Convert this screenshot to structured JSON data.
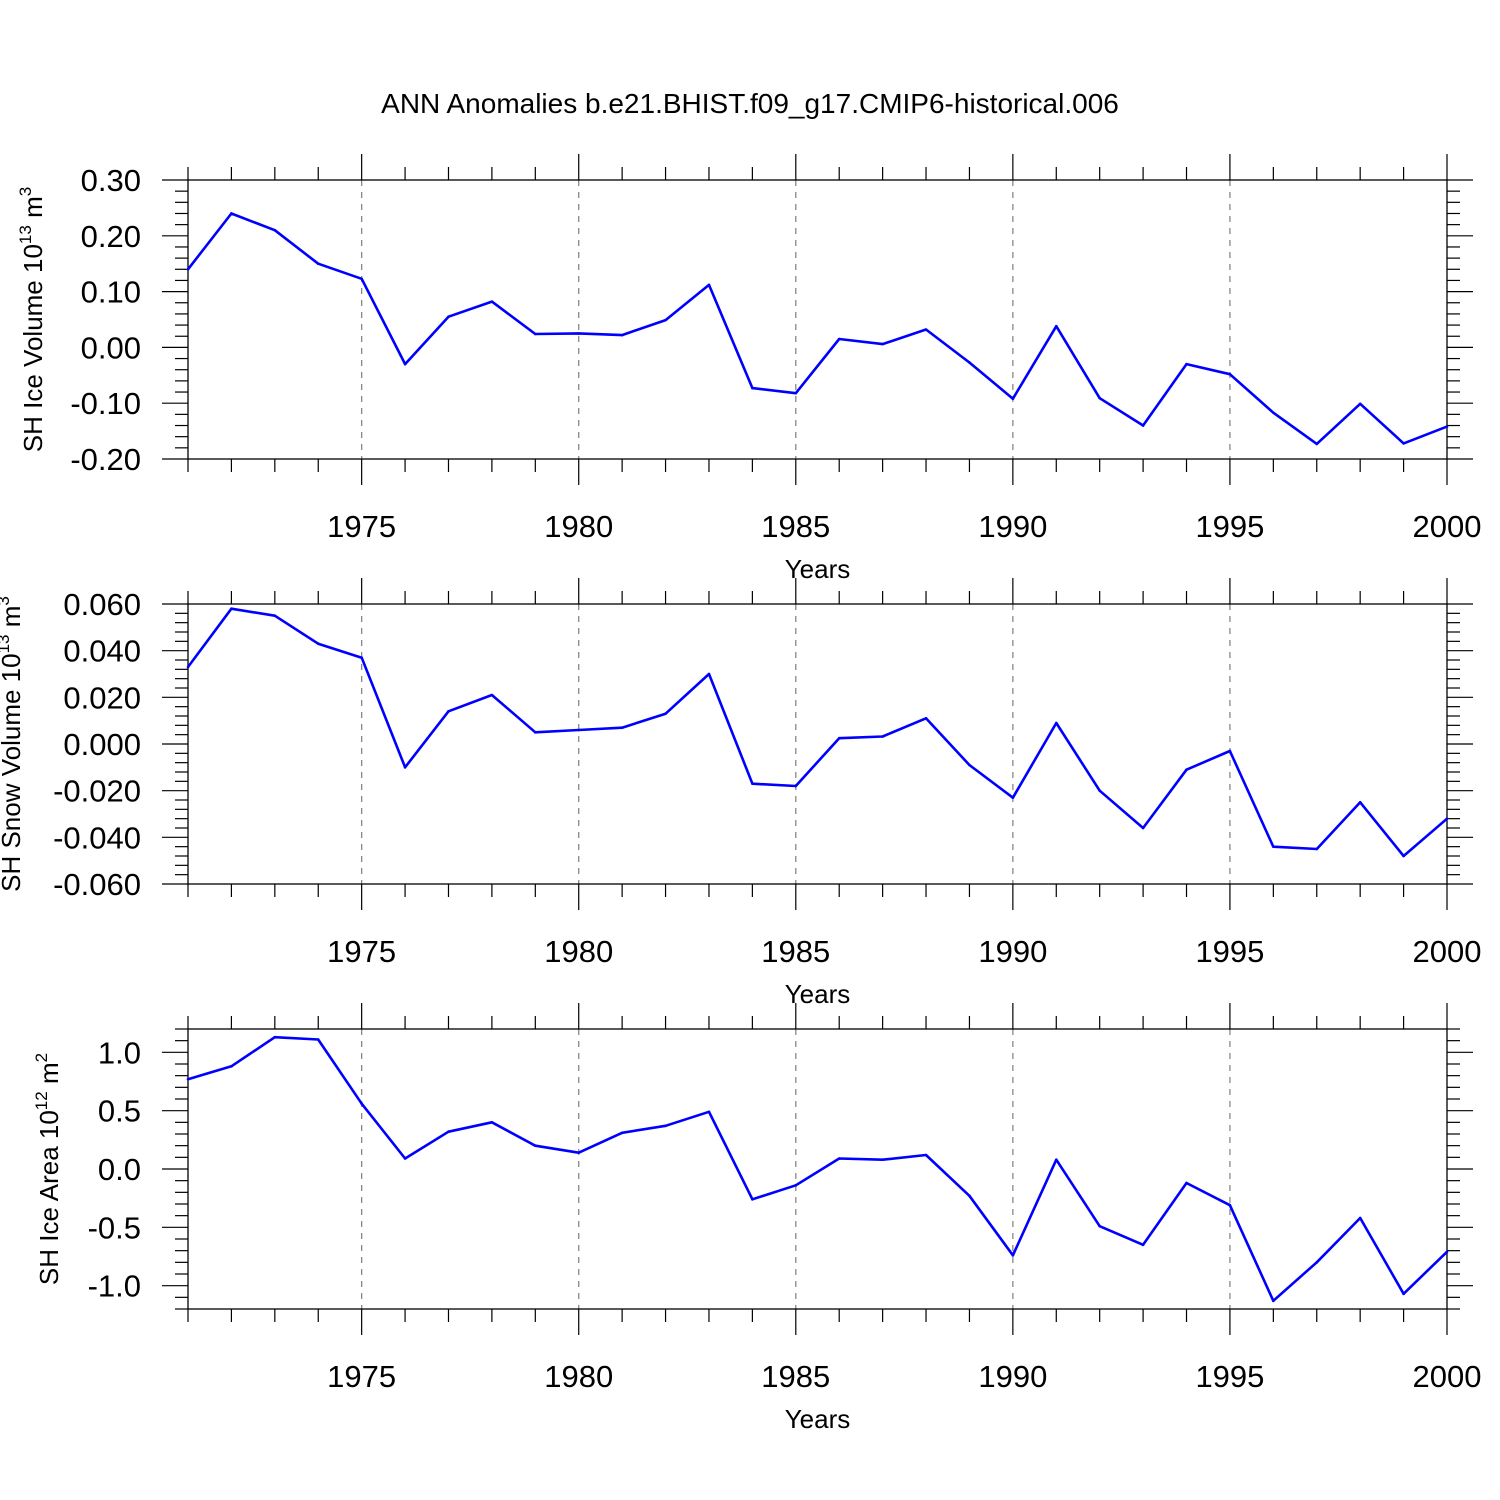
{
  "title": "ANN Anomalies b.e21.BHIST.f09_g17.CMIP6-historical.006",
  "colors": {
    "series": "#0000ff",
    "axis": "#000000",
    "grid": "#888888"
  },
  "chart_data": [
    {
      "type": "line",
      "ylabel": "SH Ice Volume 10^13 m^3",
      "ylabel_parts": {
        "prefix": "SH Ice Volume 10",
        "exp1": "13",
        "unit": " m",
        "exp2": "3"
      },
      "xlabel": "Years",
      "xlim": [
        1971,
        2000
      ],
      "ylim": [
        -0.2,
        0.3
      ],
      "yticks": [
        -0.2,
        -0.1,
        0.0,
        0.1,
        0.2,
        0.3
      ],
      "ytick_labels": [
        "-0.20",
        "-0.10",
        "0.00",
        "0.10",
        "0.20",
        "0.30"
      ],
      "xticks": [
        1975,
        1980,
        1985,
        1990,
        1995,
        2000
      ],
      "xtick_labels": [
        "1975",
        "1980",
        "1985",
        "1990",
        "1995",
        "2000"
      ],
      "grid": "dashed vertical at major x ticks",
      "x": [
        1971,
        1972,
        1973,
        1974,
        1975,
        1976,
        1977,
        1978,
        1979,
        1980,
        1981,
        1982,
        1983,
        1984,
        1985,
        1986,
        1987,
        1988,
        1989,
        1990,
        1991,
        1992,
        1993,
        1994,
        1995,
        1996,
        1997,
        1998,
        1999,
        2000
      ],
      "values": [
        0.14,
        0.24,
        0.21,
        0.15,
        0.123,
        -0.03,
        0.055,
        0.082,
        0.024,
        0.025,
        0.022,
        0.049,
        0.112,
        -0.073,
        -0.082,
        0.015,
        0.006,
        0.032,
        -0.027,
        -0.092,
        0.038,
        -0.091,
        -0.14,
        -0.03,
        -0.048,
        -0.117,
        -0.173,
        -0.101,
        -0.172,
        -0.142
      ]
    },
    {
      "type": "line",
      "ylabel": "SH Snow Volume 10^13 m^3",
      "ylabel_parts": {
        "prefix": "SH Snow Volume 10",
        "exp1": "13",
        "unit": " m",
        "exp2": "3"
      },
      "xlabel": "Years",
      "xlim": [
        1971,
        2000
      ],
      "ylim": [
        -0.06,
        0.06
      ],
      "yticks": [
        -0.06,
        -0.04,
        -0.02,
        0.0,
        0.02,
        0.04,
        0.06
      ],
      "ytick_labels": [
        "-0.060",
        "-0.040",
        "-0.020",
        "0.000",
        "0.020",
        "0.040",
        "0.060"
      ],
      "xticks": [
        1975,
        1980,
        1985,
        1990,
        1995,
        2000
      ],
      "xtick_labels": [
        "1975",
        "1980",
        "1985",
        "1990",
        "1995",
        "2000"
      ],
      "grid": "dashed vertical at major x ticks",
      "x": [
        1971,
        1972,
        1973,
        1974,
        1975,
        1976,
        1977,
        1978,
        1979,
        1980,
        1981,
        1982,
        1983,
        1984,
        1985,
        1986,
        1987,
        1988,
        1989,
        1990,
        1991,
        1992,
        1993,
        1994,
        1995,
        1996,
        1997,
        1998,
        1999,
        2000
      ],
      "values": [
        0.033,
        0.058,
        0.055,
        0.043,
        0.037,
        -0.01,
        0.014,
        0.021,
        0.005,
        0.006,
        0.007,
        0.013,
        0.03,
        -0.017,
        -0.018,
        0.0025,
        0.0032,
        0.011,
        -0.009,
        -0.023,
        0.009,
        -0.02,
        -0.036,
        -0.011,
        -0.003,
        -0.044,
        -0.045,
        -0.025,
        -0.048,
        -0.032
      ]
    },
    {
      "type": "line",
      "ylabel": "SH Ice Area 10^12 m^2",
      "ylabel_parts": {
        "prefix": "SH Ice Area 10",
        "exp1": "12",
        "unit": " m",
        "exp2": "2"
      },
      "xlabel": "Years",
      "xlim": [
        1971,
        2000
      ],
      "ylim": [
        -1.2,
        1.2
      ],
      "yticks": [
        -1.0,
        -0.5,
        0.0,
        0.5,
        1.0
      ],
      "ytick_labels": [
        "-1.0",
        "-0.5",
        "0.0",
        "0.5",
        "1.0"
      ],
      "xticks": [
        1975,
        1980,
        1985,
        1990,
        1995,
        2000
      ],
      "xtick_labels": [
        "1975",
        "1980",
        "1985",
        "1990",
        "1995",
        "2000"
      ],
      "grid": "dashed vertical at major x ticks",
      "x": [
        1971,
        1972,
        1973,
        1974,
        1975,
        1976,
        1977,
        1978,
        1979,
        1980,
        1981,
        1982,
        1983,
        1984,
        1985,
        1986,
        1987,
        1988,
        1989,
        1990,
        1991,
        1992,
        1993,
        1994,
        1995,
        1996,
        1997,
        1998,
        1999,
        2000
      ],
      "values": [
        0.77,
        0.88,
        1.13,
        1.11,
        0.56,
        0.09,
        0.32,
        0.4,
        0.2,
        0.14,
        0.31,
        0.37,
        0.49,
        -0.26,
        -0.14,
        0.09,
        0.08,
        0.12,
        -0.23,
        -0.74,
        0.08,
        -0.49,
        -0.65,
        -0.12,
        -0.31,
        -1.13,
        -0.8,
        -0.42,
        -1.07,
        -0.71
      ]
    }
  ]
}
